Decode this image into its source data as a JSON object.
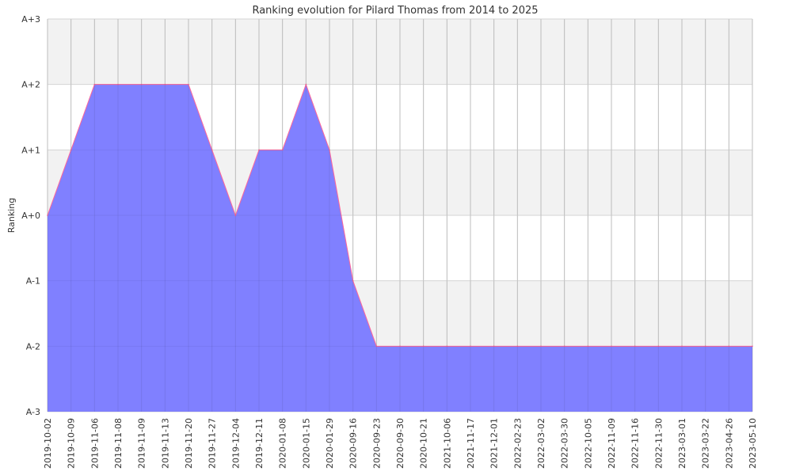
{
  "chart_data": {
    "type": "area",
    "title": "Ranking evolution for Pilard Thomas from 2014 to 2025",
    "xlabel": "",
    "ylabel": "Ranking",
    "y_ticks": [
      "A-3",
      "A-2",
      "A-1",
      "A+0",
      "A+1",
      "A+2",
      "A+3"
    ],
    "ylim": [
      "A-3",
      "A+3"
    ],
    "grid": true,
    "legend": "none",
    "x": [
      "2019-10-02",
      "2019-10-09",
      "2019-11-06",
      "2019-11-08",
      "2019-11-09",
      "2019-11-13",
      "2019-11-20",
      "2019-11-27",
      "2019-12-04",
      "2019-12-11",
      "2020-01-08",
      "2020-01-15",
      "2020-01-29",
      "2020-09-16",
      "2020-09-23",
      "2020-09-30",
      "2020-10-21",
      "2021-10-06",
      "2021-11-17",
      "2021-12-01",
      "2022-02-23",
      "2022-03-02",
      "2022-03-30",
      "2022-10-05",
      "2022-11-09",
      "2022-11-16",
      "2022-11-30",
      "2023-03-01",
      "2023-03-22",
      "2023-04-26",
      "2023-05-10"
    ],
    "series": [
      {
        "values": [
          "A+0",
          "A+1",
          "A+2",
          "A+2",
          "A+2",
          "A+2",
          "A+2",
          "A+1",
          "A+0",
          "A+1",
          "A+1",
          "A+2",
          "A+1",
          "A-1",
          "A-2",
          "A-2",
          "A-2",
          "A-2",
          "A-2",
          "A-2",
          "A-2",
          "A-2",
          "A-2",
          "A-2",
          "A-2",
          "A-2",
          "A-2",
          "A-2",
          "A-2",
          "A-2",
          "A-2"
        ]
      }
    ],
    "colors": {
      "fill": "#8080ff",
      "line": "#ff6699",
      "band_alt": "#f2f2f2",
      "grid": "#cccccc"
    }
  }
}
